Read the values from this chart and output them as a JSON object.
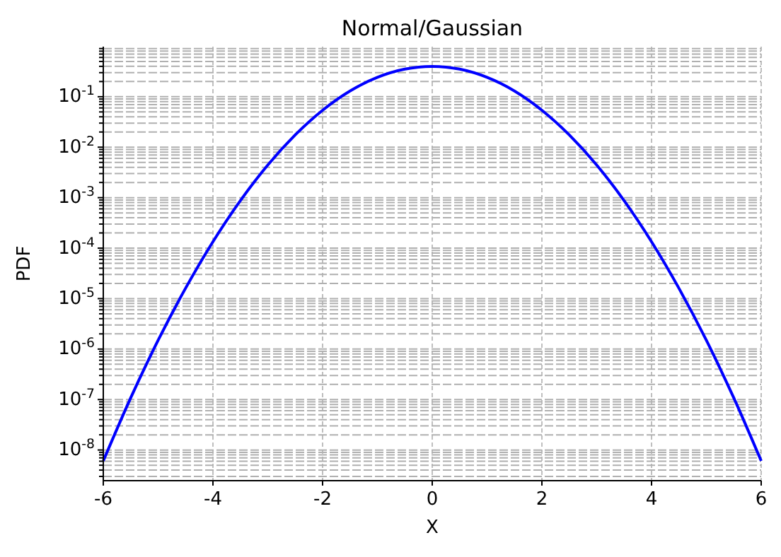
{
  "chart_data": {
    "type": "line",
    "title": "Normal/Gaussian",
    "xlabel": "X",
    "ylabel": "PDF",
    "log": "y",
    "grid": true,
    "marker": "none",
    "line_style": "solid",
    "xlim": [
      -6,
      6
    ],
    "xticks": [
      -6,
      -4,
      -2,
      0,
      2,
      4,
      6
    ],
    "ylim": [
      2.47e-09,
      0.982
    ],
    "yticks": [
      {
        "value": 3e-09,
        "label": null
      },
      {
        "value": 4e-09,
        "label": null
      },
      {
        "value": 5e-09,
        "label": null
      },
      {
        "value": 6e-09,
        "label": null
      },
      {
        "value": 7e-09,
        "label": null
      },
      {
        "value": 8e-09,
        "label": null
      },
      {
        "value": 9e-09,
        "label": null
      },
      {
        "value": 1e-08,
        "label": "10$^{-8}$"
      },
      {
        "value": 2e-08,
        "label": null
      },
      {
        "value": 3e-08,
        "label": null
      },
      {
        "value": 4e-08,
        "label": null
      },
      {
        "value": 5e-08,
        "label": null
      },
      {
        "value": 6e-08,
        "label": null
      },
      {
        "value": 7e-08,
        "label": null
      },
      {
        "value": 8e-08,
        "label": null
      },
      {
        "value": 9e-08,
        "label": null
      },
      {
        "value": 1e-07,
        "label": "10$^{-7}$"
      },
      {
        "value": 2e-07,
        "label": null
      },
      {
        "value": 3e-07,
        "label": null
      },
      {
        "value": 4e-07,
        "label": null
      },
      {
        "value": 5e-07,
        "label": null
      },
      {
        "value": 6e-07,
        "label": null
      },
      {
        "value": 7e-07,
        "label": null
      },
      {
        "value": 8e-07,
        "label": null
      },
      {
        "value": 9e-07,
        "label": null
      },
      {
        "value": 1e-06,
        "label": "10$^{-6}$"
      },
      {
        "value": 2e-06,
        "label": null
      },
      {
        "value": 3e-06,
        "label": null
      },
      {
        "value": 4e-06,
        "label": null
      },
      {
        "value": 5e-06,
        "label": null
      },
      {
        "value": 6e-06,
        "label": null
      },
      {
        "value": 7e-06,
        "label": null
      },
      {
        "value": 8e-06,
        "label": null
      },
      {
        "value": 9e-06,
        "label": null
      },
      {
        "value": 1e-05,
        "label": "10$^{-5}$"
      },
      {
        "value": 2e-05,
        "label": null
      },
      {
        "value": 3e-05,
        "label": null
      },
      {
        "value": 4e-05,
        "label": null
      },
      {
        "value": 5e-05,
        "label": null
      },
      {
        "value": 6e-05,
        "label": null
      },
      {
        "value": 7e-05,
        "label": null
      },
      {
        "value": 8e-05,
        "label": null
      },
      {
        "value": 9e-05,
        "label": null
      },
      {
        "value": 0.0001,
        "label": "10$^{-4}$"
      },
      {
        "value": 0.0002,
        "label": null
      },
      {
        "value": 0.0003,
        "label": null
      },
      {
        "value": 0.0004,
        "label": null
      },
      {
        "value": 0.0005,
        "label": null
      },
      {
        "value": 0.0006,
        "label": null
      },
      {
        "value": 0.0007,
        "label": null
      },
      {
        "value": 0.0008,
        "label": null
      },
      {
        "value": 0.0009,
        "label": null
      },
      {
        "value": 0.001,
        "label": "10$^{-3}$"
      },
      {
        "value": 0.002,
        "label": null
      },
      {
        "value": 0.003,
        "label": null
      },
      {
        "value": 0.004,
        "label": null
      },
      {
        "value": 0.005,
        "label": null
      },
      {
        "value": 0.006,
        "label": null
      },
      {
        "value": 0.007,
        "label": null
      },
      {
        "value": 0.008,
        "label": null
      },
      {
        "value": 0.009,
        "label": null
      },
      {
        "value": 0.01,
        "label": "10$^{-2}$"
      },
      {
        "value": 0.02,
        "label": null
      },
      {
        "value": 0.03,
        "label": null
      },
      {
        "value": 0.04,
        "label": null
      },
      {
        "value": 0.05,
        "label": null
      },
      {
        "value": 0.06,
        "label": null
      },
      {
        "value": 0.07,
        "label": null
      },
      {
        "value": 0.08,
        "label": null
      },
      {
        "value": 0.09,
        "label": null
      },
      {
        "value": 0.1,
        "label": "10$^{-1}$"
      },
      {
        "value": 0.2,
        "label": null
      },
      {
        "value": 0.3,
        "label": null
      },
      {
        "value": 0.4,
        "label": null
      },
      {
        "value": 0.5,
        "label": null
      },
      {
        "value": 0.6,
        "label": null
      },
      {
        "value": 0.7,
        "label": null
      },
      {
        "value": 0.8,
        "label": null
      },
      {
        "value": 0.9,
        "label": null
      }
    ],
    "x": [
      -6,
      -5.5,
      -5,
      -4.5,
      -4,
      -3.5,
      -3,
      -2.5,
      -2,
      -1.5,
      -1,
      -0.5,
      0,
      0.5,
      1,
      1.5,
      2,
      2.5,
      3,
      3.5,
      4,
      4.5,
      5,
      5.5,
      6
    ],
    "series": [
      {
        "color": "#0000ff",
        "values": [
          6.08e-09,
          1.08e-07,
          1.49e-06,
          1.6e-05,
          0.000134,
          0.000873,
          0.00443,
          0.0175,
          0.054,
          0.13,
          0.242,
          0.352,
          0.399,
          0.352,
          0.242,
          0.13,
          0.054,
          0.0175,
          0.00443,
          0.000873,
          0.000134,
          1.6e-05,
          1.49e-06,
          1.08e-07,
          6.08e-09
        ]
      }
    ]
  }
}
